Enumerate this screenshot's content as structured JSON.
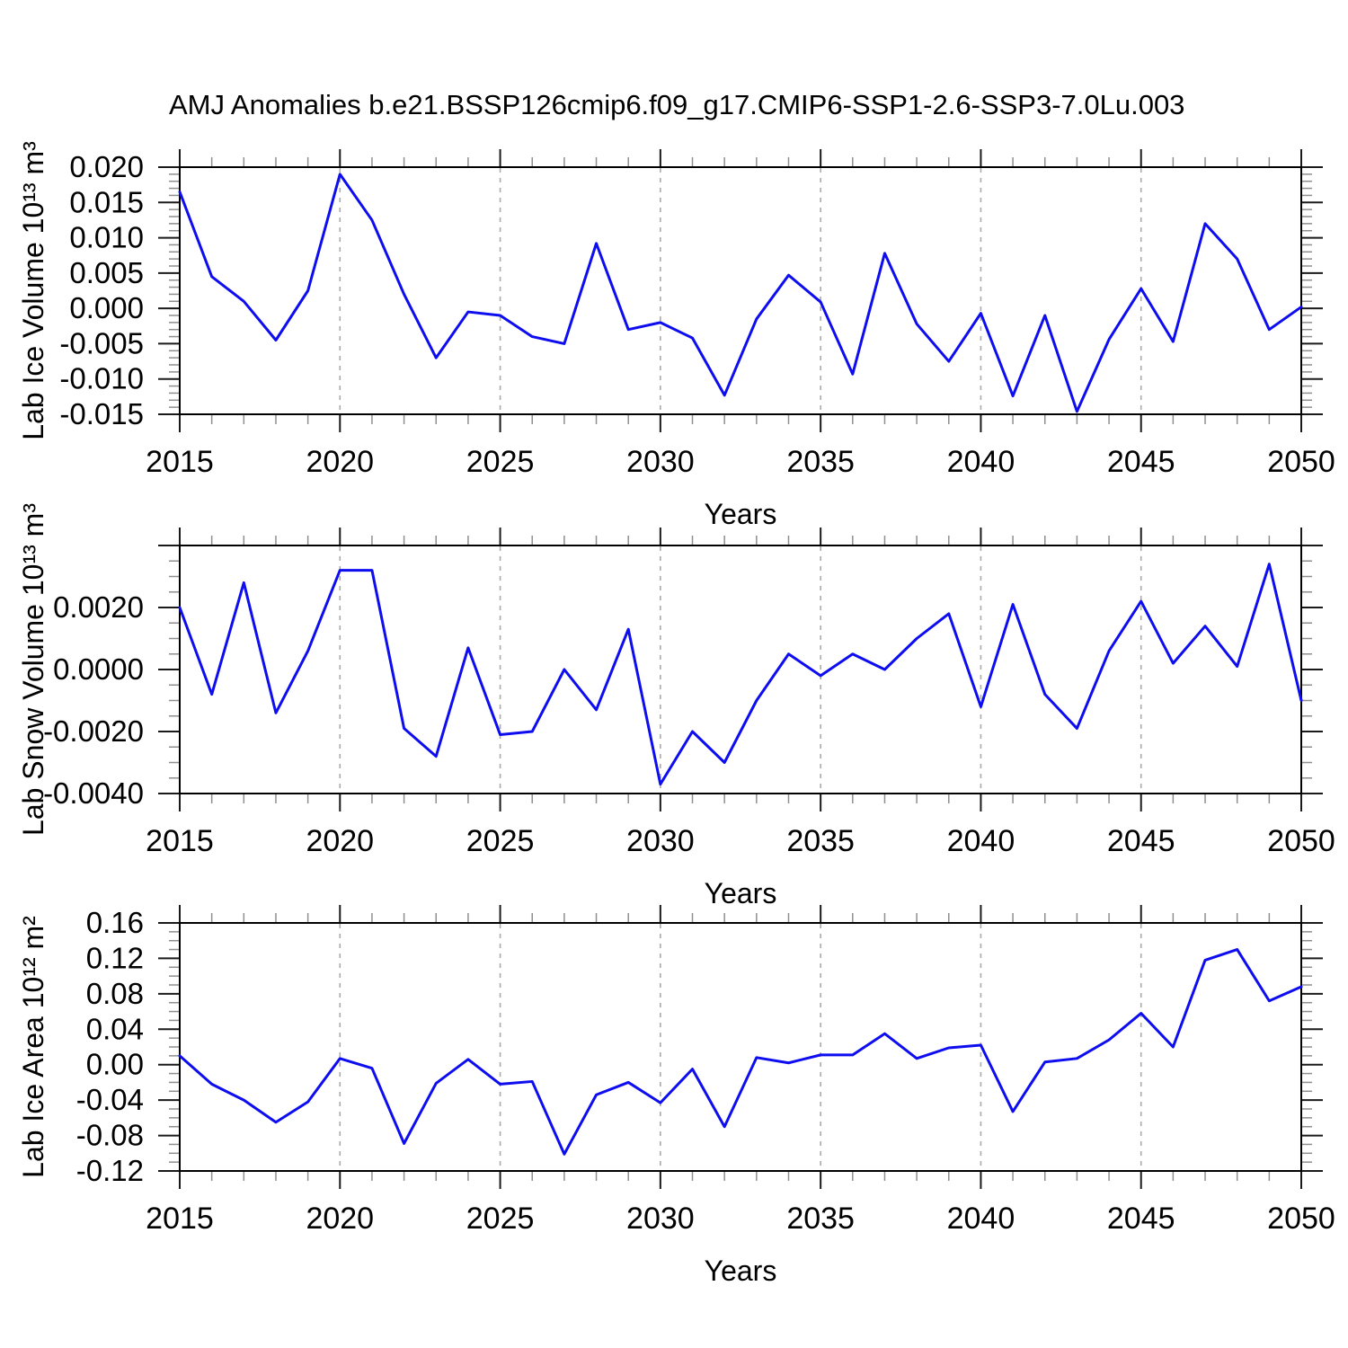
{
  "title": "AMJ Anomalies b.e21.BSSP126cmip6.f09_g17.CMIP6-SSP1-2.6-SSP3-7.0Lu.003",
  "line_color": "#0d0df0",
  "axis_colors": {
    "frame": "#000000",
    "major_tick": "#1a1a1a",
    "minor_tick": "#8f8f8f",
    "grid": "#aaaaaa",
    "text": "#000000"
  },
  "chart_data": [
    {
      "id": "ice-volume",
      "type": "line",
      "ylabel": "Lab Ice Volume 10¹³ m³",
      "xlabel": "Years",
      "x": [
        2015,
        2016,
        2017,
        2018,
        2019,
        2020,
        2021,
        2022,
        2023,
        2024,
        2025,
        2026,
        2027,
        2028,
        2029,
        2030,
        2031,
        2032,
        2033,
        2034,
        2035,
        2036,
        2037,
        2038,
        2039,
        2040,
        2041,
        2042,
        2043,
        2044,
        2045,
        2046,
        2047,
        2048,
        2049,
        2050
      ],
      "values": [
        0.0165,
        0.0045,
        0.001,
        -0.0045,
        0.0025,
        0.019,
        0.0125,
        0.002,
        -0.007,
        -0.0005,
        -0.001,
        -0.004,
        -0.005,
        0.0092,
        -0.003,
        -0.002,
        -0.0042,
        -0.0123,
        -0.0015,
        0.0047,
        0.0009,
        -0.0093,
        0.0078,
        -0.0022,
        -0.0075,
        -0.0007,
        -0.0124,
        -0.001,
        -0.0146,
        -0.0044,
        0.0028,
        -0.0047,
        0.012,
        0.007,
        -0.003,
        0.0002
      ],
      "xlim": [
        2015,
        2050
      ],
      "ylim": [
        -0.015,
        0.02
      ],
      "yticks": [
        {
          "value": 0.02,
          "label": "0.020"
        },
        {
          "value": 0.015,
          "label": "0.015"
        },
        {
          "value": 0.01,
          "label": "0.010"
        },
        {
          "value": 0.005,
          "label": "0.005"
        },
        {
          "value": 0.0,
          "label": "0.000"
        },
        {
          "value": -0.005,
          "label": "-0.005"
        },
        {
          "value": -0.01,
          "label": "-0.010"
        },
        {
          "value": -0.015,
          "label": "-0.015"
        }
      ],
      "ymajor_unlabeled": [],
      "ytick_minor_step": 0.001,
      "xtick_labels": [
        "2015",
        "2020",
        "2025",
        "2030",
        "2035",
        "2040",
        "2045",
        "2050"
      ],
      "xtick_minor_step": 1,
      "grid_x": [
        2020,
        2025,
        2030,
        2035,
        2040,
        2045
      ],
      "grid_style": "vertical-dashed",
      "legend": "none"
    },
    {
      "id": "snow-volume",
      "type": "line",
      "ylabel": "Lab Snow Volume 10¹³ m³",
      "xlabel": "Years",
      "x": [
        2015,
        2016,
        2017,
        2018,
        2019,
        2020,
        2021,
        2022,
        2023,
        2024,
        2025,
        2026,
        2027,
        2028,
        2029,
        2030,
        2031,
        2032,
        2033,
        2034,
        2035,
        2036,
        2037,
        2038,
        2039,
        2040,
        2041,
        2042,
        2043,
        2044,
        2045,
        2046,
        2047,
        2048,
        2049,
        2050
      ],
      "values": [
        0.002,
        -0.0008,
        0.0028,
        -0.0014,
        0.0006,
        0.0032,
        0.0032,
        -0.0019,
        -0.0028,
        0.0007,
        -0.0021,
        -0.002,
        0.0,
        -0.0013,
        0.0013,
        -0.0037,
        -0.002,
        -0.003,
        -0.001,
        0.0005,
        -0.0002,
        0.0005,
        0.0,
        0.001,
        0.0018,
        -0.0012,
        0.0021,
        -0.0008,
        -0.0019,
        0.0006,
        0.0022,
        0.0002,
        0.0014,
        0.0001,
        0.0034,
        -0.001
      ],
      "xlim": [
        2015,
        2050
      ],
      "ylim": [
        -0.004,
        0.004
      ],
      "yticks": [
        {
          "value": 0.002,
          "label": "0.0020"
        },
        {
          "value": 0.0,
          "label": "0.0000"
        },
        {
          "value": -0.002,
          "label": "-0.0020"
        },
        {
          "value": -0.004,
          "label": "-0.0040"
        }
      ],
      "ymajor_unlabeled": [
        0.004
      ],
      "ytick_minor_step": 0.0005,
      "xtick_labels": [
        "2015",
        "2020",
        "2025",
        "2030",
        "2035",
        "2040",
        "2045",
        "2050"
      ],
      "xtick_minor_step": 1,
      "grid_x": [
        2020,
        2025,
        2030,
        2035,
        2040,
        2045
      ],
      "grid_style": "vertical-dashed",
      "legend": "none"
    },
    {
      "id": "ice-area",
      "type": "line",
      "ylabel": "Lab Ice Area 10¹² m²",
      "xlabel": "Years",
      "x": [
        2015,
        2016,
        2017,
        2018,
        2019,
        2020,
        2021,
        2022,
        2023,
        2024,
        2025,
        2026,
        2027,
        2028,
        2029,
        2030,
        2031,
        2032,
        2033,
        2034,
        2035,
        2036,
        2037,
        2038,
        2039,
        2040,
        2041,
        2042,
        2043,
        2044,
        2045,
        2046,
        2047,
        2048,
        2049,
        2050
      ],
      "values": [
        0.01,
        -0.022,
        -0.04,
        -0.065,
        -0.042,
        0.007,
        -0.004,
        -0.089,
        -0.021,
        0.006,
        -0.022,
        -0.019,
        -0.101,
        -0.034,
        -0.02,
        -0.043,
        -0.005,
        -0.07,
        0.008,
        0.002,
        0.011,
        0.011,
        0.035,
        0.007,
        0.019,
        0.022,
        -0.053,
        0.003,
        0.007,
        0.028,
        0.058,
        0.02,
        0.118,
        0.13,
        0.072,
        0.088
      ],
      "xlim": [
        2015,
        2050
      ],
      "ylim": [
        -0.12,
        0.16
      ],
      "yticks": [
        {
          "value": 0.16,
          "label": "0.16"
        },
        {
          "value": 0.12,
          "label": "0.12"
        },
        {
          "value": 0.08,
          "label": "0.08"
        },
        {
          "value": 0.04,
          "label": "0.04"
        },
        {
          "value": 0.0,
          "label": "0.00"
        },
        {
          "value": -0.04,
          "label": "-0.04"
        },
        {
          "value": -0.08,
          "label": "-0.08"
        },
        {
          "value": -0.12,
          "label": "-0.12"
        }
      ],
      "ymajor_unlabeled": [],
      "ytick_minor_step": 0.01,
      "xtick_labels": [
        "2015",
        "2020",
        "2025",
        "2030",
        "2035",
        "2040",
        "2045",
        "2050"
      ],
      "xtick_minor_step": 1,
      "grid_x": [
        2020,
        2025,
        2030,
        2035,
        2040,
        2045
      ],
      "grid_style": "vertical-dashed",
      "legend": "none"
    }
  ]
}
